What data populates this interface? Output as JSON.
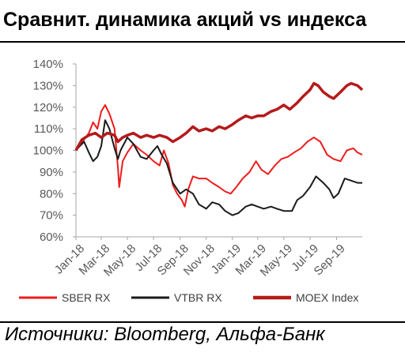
{
  "title": "Сравнит. динамика акций vs индекса",
  "source": "Источники: Bloomberg, Альфа-Банк",
  "chart_data": {
    "type": "line",
    "ylim": [
      60,
      140
    ],
    "y_ticks": [
      "60%",
      "70%",
      "80%",
      "90%",
      "100%",
      "110%",
      "120%",
      "130%",
      "140%"
    ],
    "x_ticks": [
      "Jan-18",
      "Mar-18",
      "May-18",
      "Jul-18",
      "Sep-18",
      "Nov-18",
      "Jan-19",
      "Mar-19",
      "May-19",
      "Jul-19",
      "Sep-19"
    ],
    "x_start": "2018-01-01",
    "x_end": "2019-10-31",
    "grid": false,
    "legend_position": "bottom",
    "series": [
      {
        "name": "SBER RX",
        "color": "#ee1c1c",
        "values": [
          [
            "2018-01-01",
            100
          ],
          [
            "2018-01-10",
            102
          ],
          [
            "2018-01-20",
            105
          ],
          [
            "2018-01-31",
            108
          ],
          [
            "2018-02-10",
            113
          ],
          [
            "2018-02-20",
            110
          ],
          [
            "2018-03-01",
            118
          ],
          [
            "2018-03-10",
            121
          ],
          [
            "2018-03-20",
            117
          ],
          [
            "2018-04-01",
            110
          ],
          [
            "2018-04-09",
            92
          ],
          [
            "2018-04-12",
            83
          ],
          [
            "2018-04-20",
            95
          ],
          [
            "2018-05-01",
            99
          ],
          [
            "2018-05-15",
            103
          ],
          [
            "2018-06-01",
            100
          ],
          [
            "2018-06-15",
            98
          ],
          [
            "2018-07-01",
            95
          ],
          [
            "2018-07-15",
            93
          ],
          [
            "2018-07-25",
            100
          ],
          [
            "2018-08-05",
            94
          ],
          [
            "2018-08-15",
            84
          ],
          [
            "2018-08-25",
            80
          ],
          [
            "2018-09-05",
            77
          ],
          [
            "2018-09-12",
            74
          ],
          [
            "2018-09-20",
            82
          ],
          [
            "2018-10-01",
            88
          ],
          [
            "2018-10-15",
            87
          ],
          [
            "2018-11-01",
            87
          ],
          [
            "2018-11-15",
            85
          ],
          [
            "2018-12-01",
            83
          ],
          [
            "2018-12-15",
            81
          ],
          [
            "2018-12-28",
            80
          ],
          [
            "2019-01-10",
            83
          ],
          [
            "2019-01-25",
            87
          ],
          [
            "2019-02-10",
            90
          ],
          [
            "2019-02-25",
            95
          ],
          [
            "2019-03-10",
            91
          ],
          [
            "2019-03-25",
            89
          ],
          [
            "2019-04-10",
            93
          ],
          [
            "2019-04-25",
            96
          ],
          [
            "2019-05-10",
            97
          ],
          [
            "2019-05-25",
            99
          ],
          [
            "2019-06-10",
            101
          ],
          [
            "2019-06-25",
            104
          ],
          [
            "2019-07-10",
            106
          ],
          [
            "2019-07-25",
            104
          ],
          [
            "2019-08-10",
            98
          ],
          [
            "2019-08-25",
            96
          ],
          [
            "2019-09-10",
            95
          ],
          [
            "2019-09-25",
            100
          ],
          [
            "2019-10-10",
            101
          ],
          [
            "2019-10-20",
            99
          ],
          [
            "2019-10-31",
            98
          ]
        ]
      },
      {
        "name": "VTBR RX",
        "color": "#1a1a1a",
        "values": [
          [
            "2018-01-01",
            100
          ],
          [
            "2018-01-10",
            102
          ],
          [
            "2018-01-20",
            104
          ],
          [
            "2018-01-31",
            99
          ],
          [
            "2018-02-10",
            95
          ],
          [
            "2018-02-20",
            97
          ],
          [
            "2018-03-01",
            102
          ],
          [
            "2018-03-10",
            114
          ],
          [
            "2018-03-20",
            110
          ],
          [
            "2018-04-01",
            101
          ],
          [
            "2018-04-09",
            96
          ],
          [
            "2018-04-15",
            100
          ],
          [
            "2018-05-01",
            106
          ],
          [
            "2018-05-15",
            103
          ],
          [
            "2018-06-01",
            97
          ],
          [
            "2018-06-15",
            96
          ],
          [
            "2018-07-01",
            100
          ],
          [
            "2018-07-10",
            102
          ],
          [
            "2018-07-20",
            98
          ],
          [
            "2018-08-01",
            94
          ],
          [
            "2018-08-15",
            85
          ],
          [
            "2018-09-01",
            80
          ],
          [
            "2018-09-15",
            82
          ],
          [
            "2018-10-01",
            80
          ],
          [
            "2018-10-15",
            75
          ],
          [
            "2018-11-01",
            73
          ],
          [
            "2018-11-15",
            76
          ],
          [
            "2018-12-01",
            75
          ],
          [
            "2018-12-15",
            72
          ],
          [
            "2019-01-01",
            70
          ],
          [
            "2019-01-15",
            71
          ],
          [
            "2019-02-01",
            74
          ],
          [
            "2019-02-15",
            75
          ],
          [
            "2019-03-01",
            74
          ],
          [
            "2019-03-15",
            73
          ],
          [
            "2019-04-01",
            74
          ],
          [
            "2019-04-15",
            73
          ],
          [
            "2019-05-01",
            72
          ],
          [
            "2019-05-20",
            72
          ],
          [
            "2019-06-01",
            77
          ],
          [
            "2019-06-15",
            79
          ],
          [
            "2019-07-01",
            83
          ],
          [
            "2019-07-15",
            88
          ],
          [
            "2019-08-01",
            85
          ],
          [
            "2019-08-15",
            82
          ],
          [
            "2019-08-25",
            78
          ],
          [
            "2019-09-05",
            80
          ],
          [
            "2019-09-20",
            87
          ],
          [
            "2019-10-05",
            86
          ],
          [
            "2019-10-20",
            85
          ],
          [
            "2019-10-31",
            85
          ]
        ]
      },
      {
        "name": "MOEX Index",
        "color": "#b51a1a",
        "values": [
          [
            "2018-01-01",
            100
          ],
          [
            "2018-01-15",
            105
          ],
          [
            "2018-01-31",
            107
          ],
          [
            "2018-02-15",
            108
          ],
          [
            "2018-03-01",
            106
          ],
          [
            "2018-03-15",
            108
          ],
          [
            "2018-04-01",
            107
          ],
          [
            "2018-04-09",
            104
          ],
          [
            "2018-04-20",
            106
          ],
          [
            "2018-05-01",
            107
          ],
          [
            "2018-05-15",
            108
          ],
          [
            "2018-06-01",
            106
          ],
          [
            "2018-06-15",
            107
          ],
          [
            "2018-07-01",
            106
          ],
          [
            "2018-07-15",
            107
          ],
          [
            "2018-08-01",
            106
          ],
          [
            "2018-08-15",
            104
          ],
          [
            "2018-09-01",
            106
          ],
          [
            "2018-09-15",
            108
          ],
          [
            "2018-10-01",
            111
          ],
          [
            "2018-10-15",
            109
          ],
          [
            "2018-11-01",
            110
          ],
          [
            "2018-11-15",
            109
          ],
          [
            "2018-12-01",
            111
          ],
          [
            "2018-12-15",
            110
          ],
          [
            "2019-01-01",
            112
          ],
          [
            "2019-01-15",
            114
          ],
          [
            "2019-02-01",
            116
          ],
          [
            "2019-02-15",
            115
          ],
          [
            "2019-03-01",
            116
          ],
          [
            "2019-03-15",
            116
          ],
          [
            "2019-04-01",
            118
          ],
          [
            "2019-04-15",
            119
          ],
          [
            "2019-05-01",
            121
          ],
          [
            "2019-05-15",
            119
          ],
          [
            "2019-06-01",
            122
          ],
          [
            "2019-06-15",
            125
          ],
          [
            "2019-07-01",
            128
          ],
          [
            "2019-07-10",
            131
          ],
          [
            "2019-07-20",
            130
          ],
          [
            "2019-08-01",
            127
          ],
          [
            "2019-08-15",
            125
          ],
          [
            "2019-08-25",
            124
          ],
          [
            "2019-09-10",
            127
          ],
          [
            "2019-09-25",
            130
          ],
          [
            "2019-10-05",
            131
          ],
          [
            "2019-10-20",
            130
          ],
          [
            "2019-10-31",
            128
          ]
        ]
      }
    ]
  }
}
